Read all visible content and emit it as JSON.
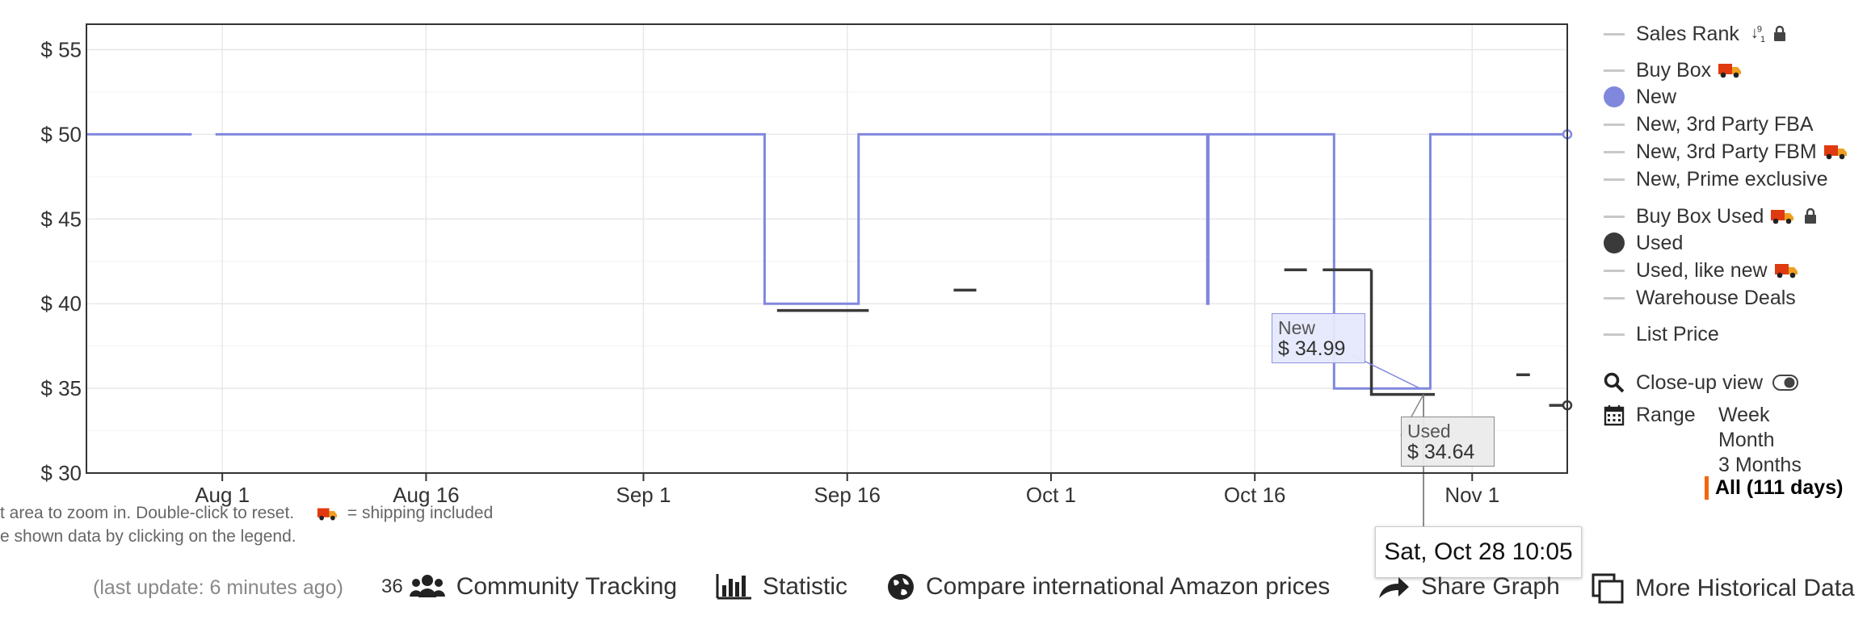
{
  "chart_data": {
    "type": "line",
    "title": "",
    "xlabel": "",
    "ylabel": "",
    "x_ticks": [
      "Aug 1",
      "Aug 16",
      "Sep 1",
      "Sep 16",
      "Oct 1",
      "Oct 16",
      "Nov 1"
    ],
    "y_ticks": [
      "$ 55",
      "$ 50",
      "$ 45",
      "$ 40",
      "$ 35",
      "$ 30"
    ],
    "ylim": [
      30,
      56.5
    ],
    "xlim": [
      "2023-07-22 00:00",
      "2023-11-08 00:00"
    ],
    "grid": true,
    "legend_position": "right",
    "series": [
      {
        "name": "New",
        "color": "#8088dd",
        "steps": [
          {
            "start": "2023-07-22 00:00",
            "end": "2023-07-29 18:00",
            "value": 50
          },
          {
            "start": "2023-07-31 12:00",
            "end": "2023-09-09 22:00",
            "value": 50
          },
          {
            "start": "2023-09-09 22:00",
            "end": "2023-09-16 20:00",
            "value": 40
          },
          {
            "start": "2023-09-16 20:00",
            "end": "2023-10-12 12:00",
            "value": 50
          },
          {
            "start": "2023-10-12 12:00",
            "end": "2023-10-12 14:00",
            "value": 40
          },
          {
            "start": "2023-10-12 14:00",
            "end": "2023-10-21 20:00",
            "value": 50
          },
          {
            "start": "2023-10-21 20:00",
            "end": "2023-10-28 22:00",
            "value": 34.99
          },
          {
            "start": "2023-10-28 22:00",
            "end": "2023-11-08 00:00",
            "value": 50
          }
        ]
      },
      {
        "name": "Used",
        "color": "#3a3a3a",
        "steps": [
          {
            "start": "2023-09-10 20:00",
            "end": "2023-09-17 14:00",
            "value": 39.6
          },
          {
            "start": "2023-09-23 20:00",
            "end": "2023-09-25 12:00",
            "value": 40.8
          },
          {
            "start": "2023-10-18 04:00",
            "end": "2023-10-19 20:00",
            "value": 42
          },
          {
            "start": "2023-10-21 00:00",
            "end": "2023-10-24 14:00",
            "value": 42
          },
          {
            "start": "2023-10-24 14:00",
            "end": "2023-10-29 06:00",
            "value": 34.64
          },
          {
            "start": "2023-11-04 06:00",
            "end": "2023-11-05 06:00",
            "value": 35.8
          },
          {
            "start": "2023-11-06 16:00",
            "end": "2023-11-08 00:00",
            "value": 34
          }
        ]
      }
    ],
    "tooltips": {
      "new": {
        "label": "New",
        "value": "$ 34.99"
      },
      "used": {
        "label": "Used",
        "value": "$ 34.64"
      },
      "date": "Sat, Oct 28 10:05",
      "at": "2023-10-28 10:05"
    }
  },
  "legend": {
    "sales_rank": "Sales Rank",
    "buy_box": "Buy Box",
    "new": "New",
    "new_3p_fba": "New, 3rd Party FBA",
    "new_3p_fbm": "New, 3rd Party FBM",
    "new_prime": "New, Prime exclusive",
    "buy_box_used": "Buy Box Used",
    "used": "Used",
    "used_like_new": "Used, like new",
    "warehouse": "Warehouse Deals",
    "list_price": "List Price",
    "closeup": "Close-up view",
    "range_label": "Range",
    "range_options": [
      "Week",
      "Month",
      "3 Months"
    ],
    "range_selected": "All (111 days)",
    "colors": {
      "new": "#8088dd",
      "used": "#3a3a3a",
      "inactive": "#c8c8c8"
    }
  },
  "hints": {
    "line1_prefix": "t area to zoom in. Double-click to reset.",
    "line1_suffix": "= shipping included",
    "line2": "e shown data by clicking on the legend."
  },
  "footer": {
    "last_update": "(last update: 6 minutes ago)",
    "tracking_count": "36",
    "community": "Community Tracking",
    "statistic": "Statistic",
    "compare": "Compare international Amazon prices",
    "share": "Share Graph",
    "more": "More Historical Data"
  }
}
